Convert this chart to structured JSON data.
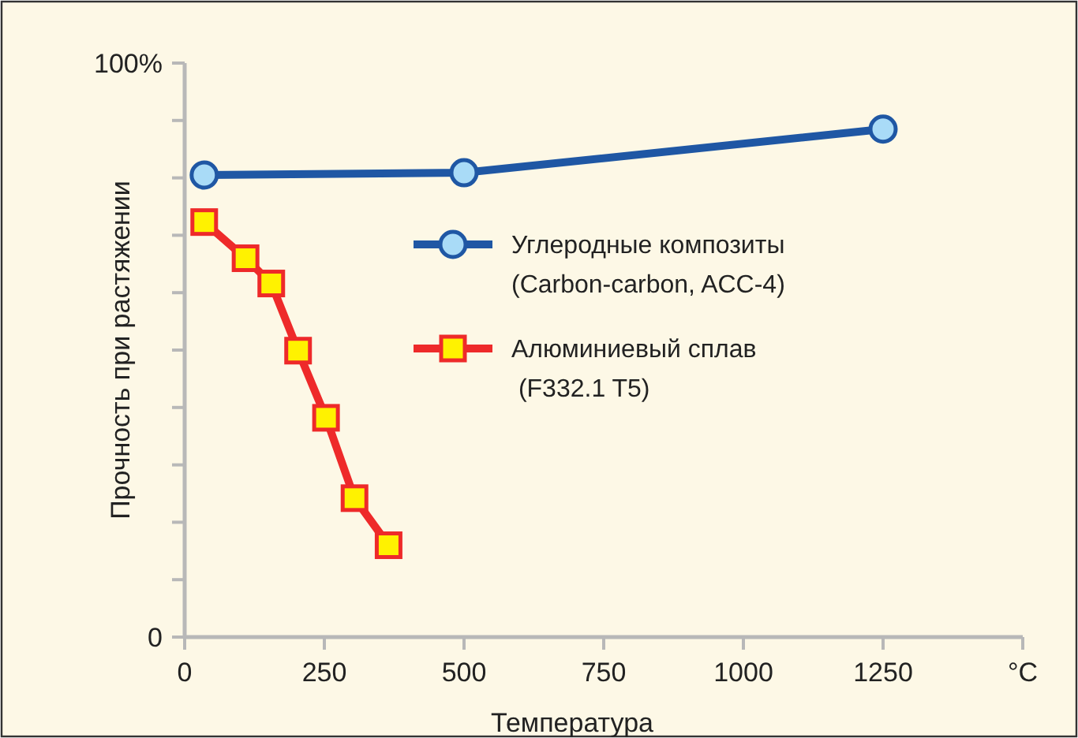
{
  "chart_data": {
    "type": "line",
    "xlabel": "Температура",
    "ylabel": "Прочность при растяжении",
    "xlim": [
      0,
      1500
    ],
    "xticks": [
      0,
      250,
      500,
      750,
      1000,
      1250,
      {
        "value": 1500,
        "label": "°C"
      }
    ],
    "ylim": [
      0,
      100
    ],
    "yticks": [
      0,
      {
        "value": 10,
        "label": null
      },
      {
        "value": 20,
        "label": null
      },
      {
        "value": 30,
        "label": null
      },
      {
        "value": 40,
        "label": null
      },
      {
        "value": 50,
        "label": null
      },
      {
        "value": 60,
        "label": null
      },
      {
        "value": 70,
        "label": null
      },
      {
        "value": 80,
        "label": null
      },
      {
        "value": 90,
        "label": null
      },
      {
        "value": 100,
        "label": "100%"
      }
    ],
    "grid": false,
    "legend": "right",
    "line_style": "solid",
    "series": [
      {
        "name": "Углеродные композиты\n(Carbon-carbon, ACC-4)",
        "color": "#1f57a4",
        "marker": "circle",
        "x": [
          35,
          500,
          1250
        ],
        "values": [
          80.5,
          80.9,
          88.5
        ]
      },
      {
        "name": "Алюминиевый сплав\n (F332.1 T5)",
        "color": "#ee2a2a",
        "marker": "square",
        "x": [
          35,
          109,
          155,
          203,
          253,
          304,
          365
        ],
        "values": [
          72.3,
          66.0,
          61.6,
          49.9,
          38.2,
          24.2,
          16.0
        ]
      }
    ]
  }
}
